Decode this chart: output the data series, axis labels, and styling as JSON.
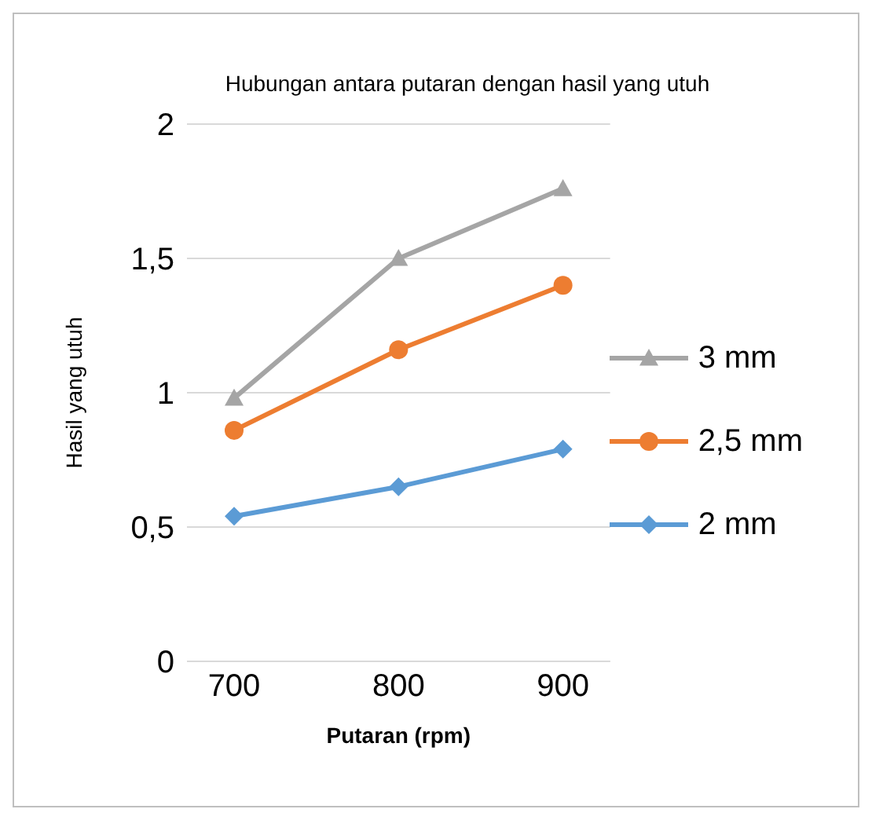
{
  "chart_data": {
    "type": "line",
    "title": "Hubungan antara putaran dengan hasil yang utuh",
    "xlabel": "Putaran (rpm)",
    "ylabel": "Hasil yang utuh",
    "categories": [
      "700",
      "800",
      "900"
    ],
    "series": [
      {
        "name": "3 mm",
        "color": "#a5a5a5",
        "marker": "triangle",
        "values": [
          0.98,
          1.5,
          1.76
        ]
      },
      {
        "name": "2,5 mm",
        "color": "#ed7d31",
        "marker": "circle",
        "values": [
          0.86,
          1.16,
          1.4
        ]
      },
      {
        "name": "2 mm",
        "color": "#5b9bd5",
        "marker": "diamond",
        "values": [
          0.54,
          0.65,
          0.79
        ]
      }
    ],
    "ylim": [
      0,
      2
    ],
    "yticks": [
      {
        "value": 0,
        "label": "0"
      },
      {
        "value": 0.5,
        "label": "0,5"
      },
      {
        "value": 1,
        "label": "1"
      },
      {
        "value": 1.5,
        "label": "1,5"
      },
      {
        "value": 2,
        "label": "2"
      }
    ],
    "grid": "y",
    "legend": "right",
    "line_style": "solid"
  }
}
